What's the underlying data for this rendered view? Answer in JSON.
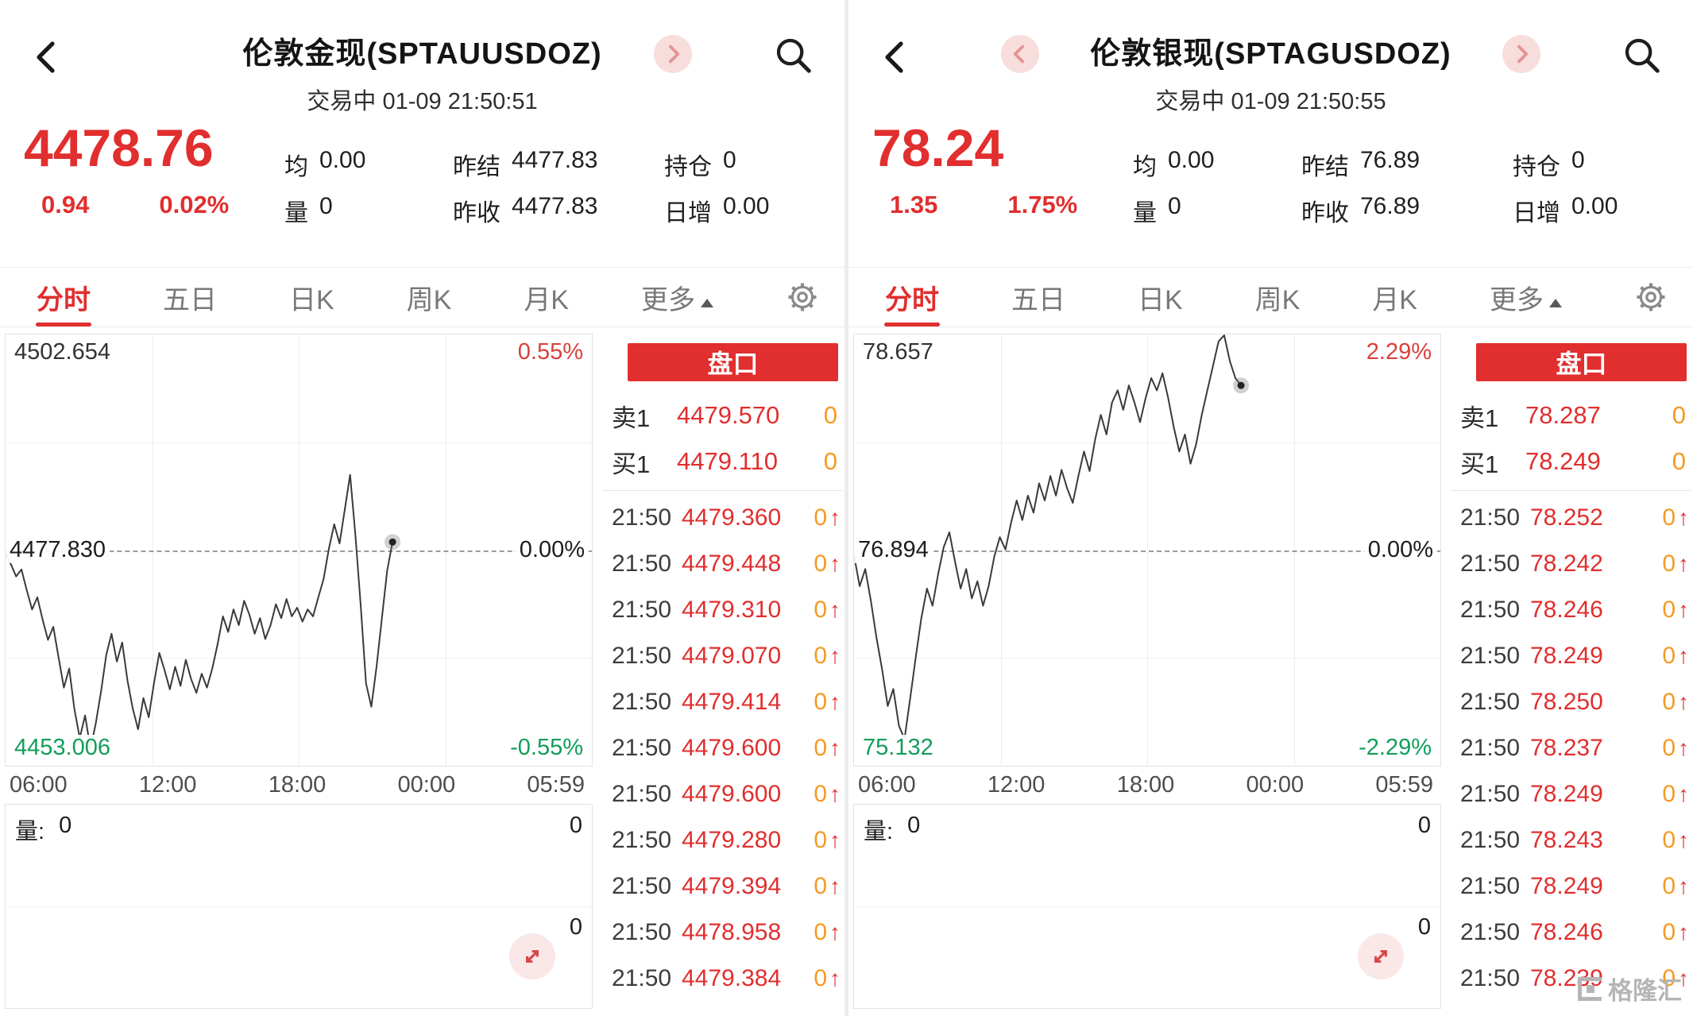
{
  "watermark": {
    "text": "格隆汇"
  },
  "panels": [
    {
      "name": "gold",
      "header": {
        "title": "伦敦金现(SPTAUUSDOZ)",
        "status": "交易中 01-09 21:50:51"
      },
      "quote": {
        "price": "4478.76",
        "change": "0.94",
        "change_pct": "0.02%",
        "stats": [
          {
            "label": "均",
            "value": "0.00"
          },
          {
            "label": "昨结",
            "value": "4477.83"
          },
          {
            "label": "持仓",
            "value": "0"
          },
          {
            "label": "量",
            "value": "0"
          },
          {
            "label": "昨收",
            "value": "4477.83"
          },
          {
            "label": "日增",
            "value": "0.00"
          }
        ]
      },
      "tabs": [
        "分时",
        "五日",
        "日K",
        "周K",
        "月K",
        "更多"
      ],
      "chart": {
        "y_top": "4502.654",
        "pct_top": "0.55%",
        "y_mid": "4477.830",
        "pct_mid": "0.00%",
        "y_bottom": "4453.006",
        "pct_bottom": "-0.55%",
        "x_labels": [
          "06:00",
          "12:00",
          "18:00",
          "00:00",
          "05:59"
        ],
        "volume_label": "量:",
        "volume_value": "0",
        "right_values": [
          "0",
          "0"
        ]
      },
      "orderbook": {
        "title": "盘口",
        "levels": [
          {
            "label": "卖1",
            "price": "4479.570",
            "qty": "0"
          },
          {
            "label": "买1",
            "price": "4479.110",
            "qty": "0"
          }
        ],
        "ticks": [
          {
            "time": "21:50",
            "price": "4479.360",
            "qty": "0",
            "dir": "↑"
          },
          {
            "time": "21:50",
            "price": "4479.448",
            "qty": "0",
            "dir": "↑"
          },
          {
            "time": "21:50",
            "price": "4479.310",
            "qty": "0",
            "dir": "↑"
          },
          {
            "time": "21:50",
            "price": "4479.070",
            "qty": "0",
            "dir": "↑"
          },
          {
            "time": "21:50",
            "price": "4479.414",
            "qty": "0",
            "dir": "↑"
          },
          {
            "time": "21:50",
            "price": "4479.600",
            "qty": "0",
            "dir": "↑"
          },
          {
            "time": "21:50",
            "price": "4479.600",
            "qty": "0",
            "dir": "↑"
          },
          {
            "time": "21:50",
            "price": "4479.280",
            "qty": "0",
            "dir": "↑"
          },
          {
            "time": "21:50",
            "price": "4479.394",
            "qty": "0",
            "dir": "↑"
          },
          {
            "time": "21:50",
            "price": "4478.958",
            "qty": "0",
            "dir": "↑"
          },
          {
            "time": "21:50",
            "price": "4479.384",
            "qty": "0",
            "dir": "↑"
          }
        ]
      }
    },
    {
      "name": "silver",
      "header": {
        "title": "伦敦银现(SPTAGUSDOZ)",
        "status": "交易中 01-09 21:50:55"
      },
      "quote": {
        "price": "78.24",
        "change": "1.35",
        "change_pct": "1.75%",
        "stats": [
          {
            "label": "均",
            "value": "0.00"
          },
          {
            "label": "昨结",
            "value": "76.89"
          },
          {
            "label": "持仓",
            "value": "0"
          },
          {
            "label": "量",
            "value": "0"
          },
          {
            "label": "昨收",
            "value": "76.89"
          },
          {
            "label": "日增",
            "value": "0.00"
          }
        ]
      },
      "tabs": [
        "分时",
        "五日",
        "日K",
        "周K",
        "月K",
        "更多"
      ],
      "chart": {
        "y_top": "78.657",
        "pct_top": "2.29%",
        "y_mid": "76.894",
        "pct_mid": "0.00%",
        "y_bottom": "75.132",
        "pct_bottom": "-2.29%",
        "x_labels": [
          "06:00",
          "12:00",
          "18:00",
          "00:00",
          "05:59"
        ],
        "volume_label": "量:",
        "volume_value": "0",
        "right_values": [
          "0",
          "0"
        ]
      },
      "orderbook": {
        "title": "盘口",
        "levels": [
          {
            "label": "卖1",
            "price": "78.287",
            "qty": "0"
          },
          {
            "label": "买1",
            "price": "78.249",
            "qty": "0"
          }
        ],
        "ticks": [
          {
            "time": "21:50",
            "price": "78.252",
            "qty": "0",
            "dir": "↑"
          },
          {
            "time": "21:50",
            "price": "78.242",
            "qty": "0",
            "dir": "↑"
          },
          {
            "time": "21:50",
            "price": "78.246",
            "qty": "0",
            "dir": "↑"
          },
          {
            "time": "21:50",
            "price": "78.249",
            "qty": "0",
            "dir": "↑"
          },
          {
            "time": "21:50",
            "price": "78.250",
            "qty": "0",
            "dir": "↑"
          },
          {
            "time": "21:50",
            "price": "78.237",
            "qty": "0",
            "dir": "↑"
          },
          {
            "time": "21:50",
            "price": "78.249",
            "qty": "0",
            "dir": "↑"
          },
          {
            "time": "21:50",
            "price": "78.243",
            "qty": "0",
            "dir": "↑"
          },
          {
            "time": "21:50",
            "price": "78.249",
            "qty": "0",
            "dir": "↑"
          },
          {
            "time": "21:50",
            "price": "78.246",
            "qty": "0",
            "dir": "↑"
          },
          {
            "time": "21:50",
            "price": "78.239",
            "qty": "0",
            "dir": "↑"
          }
        ]
      }
    }
  ],
  "chart_data": [
    {
      "type": "line",
      "title": "伦敦金现(SPTAUUSDOZ) 分时",
      "xlabel": "",
      "ylabel": "",
      "x_tick_labels": [
        "06:00",
        "12:00",
        "18:00",
        "00:00",
        "05:59"
      ],
      "y_min": 4453.006,
      "y_max": 4502.654,
      "prev_settle": 4477.83,
      "last": 4478.76,
      "plotted_fraction": 0.66,
      "values": [
        4477.5,
        4476.2,
        4474.8,
        4475.6,
        4473.2,
        4471.0,
        4472.4,
        4469.8,
        4467.5,
        4469.0,
        4465.5,
        4462.0,
        4464.2,
        4459.5,
        4456.2,
        4458.8,
        4455.0,
        4457.8,
        4461.5,
        4465.8,
        4468.2,
        4465.0,
        4467.2,
        4462.8,
        4459.6,
        4457.2,
        4460.8,
        4458.6,
        4462.5,
        4466.0,
        4464.0,
        4461.8,
        4464.4,
        4462.2,
        4465.2,
        4463.0,
        4461.4,
        4463.6,
        4462.0,
        4464.2,
        4467.0,
        4470.2,
        4468.4,
        4471.0,
        4469.2,
        4472.0,
        4470.4,
        4468.2,
        4470.0,
        4467.6,
        4469.2,
        4471.6,
        4470.0,
        4472.2,
        4470.2,
        4471.2,
        4469.6,
        4471.0,
        4470.2,
        4472.4,
        4474.5,
        4478.0,
        4480.8,
        4478.6,
        4482.5,
        4486.5,
        4479.5,
        4471.5,
        4462.5,
        4459.8,
        4464.5,
        4470.0,
        4475.5,
        4478.76
      ]
    },
    {
      "type": "line",
      "title": "伦敦银现(SPTAGUSDOZ) 分时",
      "xlabel": "",
      "ylabel": "",
      "x_tick_labels": [
        "06:00",
        "12:00",
        "18:00",
        "00:00",
        "05:59"
      ],
      "y_min": 75.132,
      "y_max": 78.657,
      "prev_settle": 76.89,
      "last": 78.24,
      "plotted_fraction": 0.66,
      "values": [
        76.85,
        76.6,
        76.74,
        76.48,
        76.18,
        75.92,
        75.62,
        75.76,
        75.46,
        75.35,
        75.68,
        76.02,
        76.34,
        76.58,
        76.44,
        76.7,
        76.92,
        77.04,
        76.8,
        76.58,
        76.74,
        76.5,
        76.64,
        76.44,
        76.6,
        76.84,
        77.0,
        76.9,
        77.12,
        77.3,
        77.14,
        77.34,
        77.2,
        77.44,
        77.3,
        77.5,
        77.34,
        77.55,
        77.4,
        77.28,
        77.5,
        77.7,
        77.54,
        77.8,
        78.0,
        77.84,
        78.1,
        78.2,
        78.04,
        78.24,
        78.1,
        77.94,
        78.14,
        78.3,
        78.2,
        78.34,
        78.14,
        77.9,
        77.7,
        77.84,
        77.6,
        77.76,
        78.0,
        78.2,
        78.4,
        78.6,
        78.65,
        78.44,
        78.3,
        78.24
      ]
    }
  ]
}
